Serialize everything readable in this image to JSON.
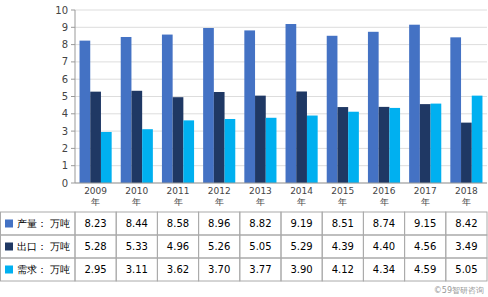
{
  "chart_data": {
    "type": "bar",
    "categories": [
      "2009\n年",
      "2010\n年",
      "2011\n年",
      "2012\n年",
      "2013\n年",
      "2014\n年",
      "2015\n年",
      "2016\n年",
      "2017\n年",
      "2018\n年"
    ],
    "series": [
      {
        "name": "产量： 万吨",
        "color": "#4472C4",
        "values": [
          8.23,
          8.44,
          8.58,
          8.96,
          8.82,
          9.19,
          8.51,
          8.74,
          9.15,
          8.42
        ],
        "value_labels": [
          "8.23",
          "8.44",
          "8.58",
          "8.96",
          "8.82",
          "9.19",
          "8.51",
          "8.74",
          "9.15",
          "8.42"
        ]
      },
      {
        "name": "出口： 万吨",
        "color": "#1F3864",
        "values": [
          5.28,
          5.33,
          4.96,
          5.26,
          5.05,
          5.29,
          4.39,
          4.4,
          4.56,
          3.49
        ],
        "value_labels": [
          "5.28",
          "5.33",
          "4.96",
          "5.26",
          "5.05",
          "5.29",
          "4.39",
          "4.40",
          "4.56",
          "3.49"
        ]
      },
      {
        "name": "需求： 万吨",
        "color": "#00B0F0",
        "values": [
          2.95,
          3.11,
          3.62,
          3.7,
          3.77,
          3.9,
          4.12,
          4.34,
          4.59,
          5.05
        ],
        "value_labels": [
          "2.95",
          "3.11",
          "3.62",
          "3.70",
          "3.77",
          "3.90",
          "4.12",
          "4.34",
          "4.59",
          "5.05"
        ]
      }
    ],
    "ylim": [
      0,
      10
    ],
    "yticks": [
      0,
      1,
      2,
      3,
      4,
      5,
      6,
      7,
      8,
      9,
      10
    ],
    "grid": true,
    "annotations": [
      "©59智研咨询"
    ]
  }
}
